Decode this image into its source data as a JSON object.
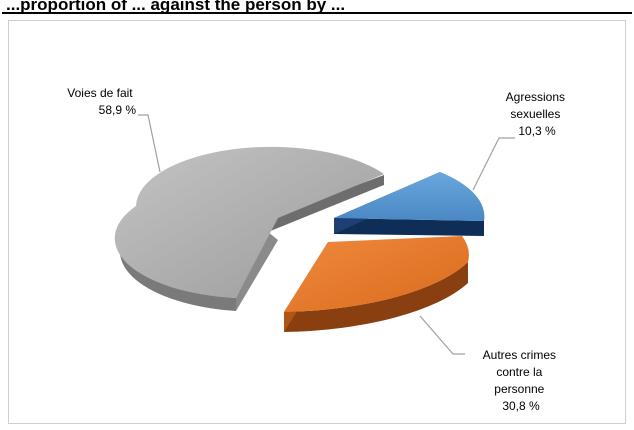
{
  "page": {
    "top_text": "...proportion of ... against the person by ..."
  },
  "chart_data": {
    "type": "pie",
    "slices": [
      {
        "label": [
          "Voies de fait"
        ],
        "percent_label": "58,9 %",
        "value": 58.9,
        "color": "#a6a6a6"
      },
      {
        "label": [
          "Agressions",
          "sexuelles"
        ],
        "percent_label": "10,3 %",
        "value": 10.3,
        "color": "#5b9bd5"
      },
      {
        "label": [
          "Autres crimes",
          "contre la",
          "personne"
        ],
        "percent_label": "30,8 %",
        "value": 30.8,
        "color": "#ed7d31"
      }
    ],
    "exploded": true,
    "style": "3d"
  }
}
